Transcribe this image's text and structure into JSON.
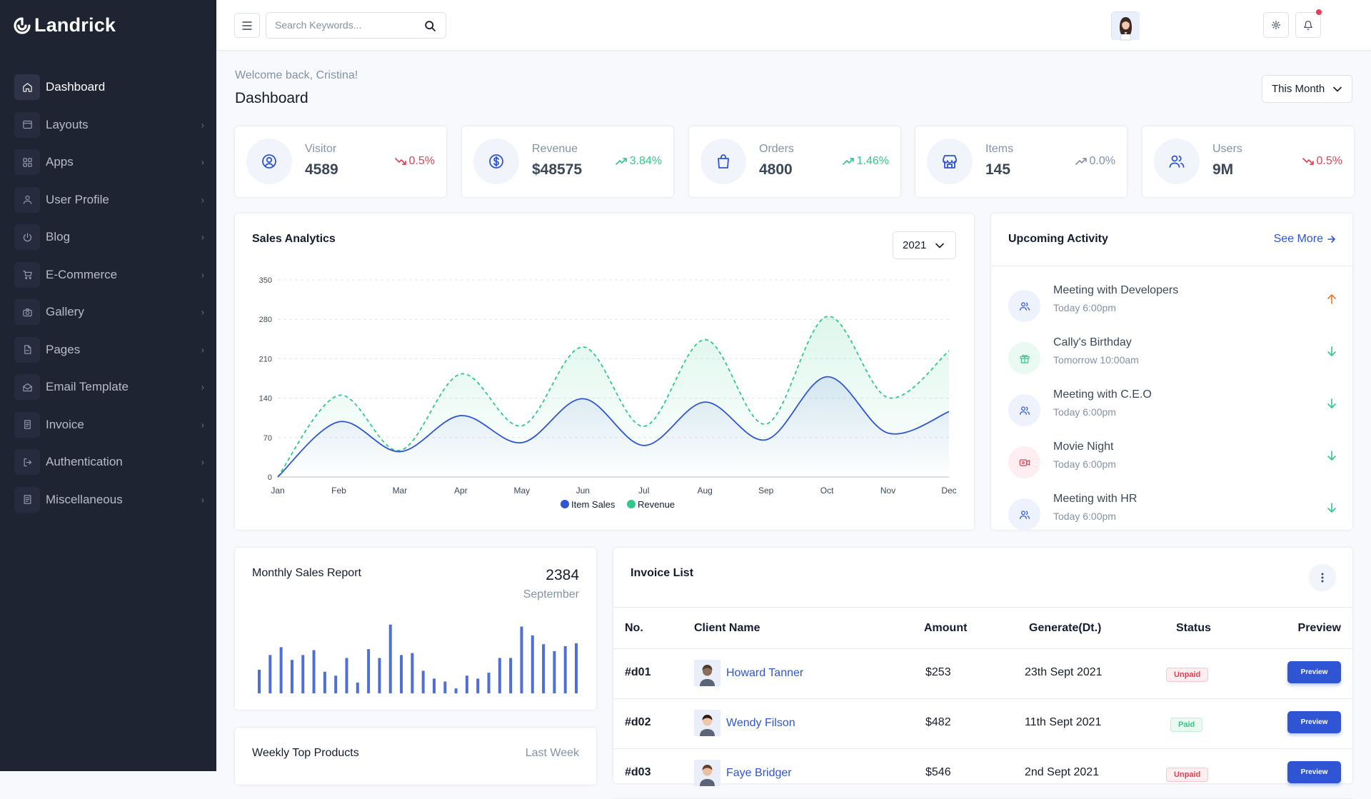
{
  "brand": {
    "name": "Landrick"
  },
  "sidebar": {
    "items": [
      {
        "label": "Dashboard",
        "icon": "home-icon",
        "active": true
      },
      {
        "label": "Layouts",
        "icon": "layout-icon"
      },
      {
        "label": "Apps",
        "icon": "apps-icon"
      },
      {
        "label": "User Profile",
        "icon": "user-icon"
      },
      {
        "label": "Blog",
        "icon": "blog-icon"
      },
      {
        "label": "E-Commerce",
        "icon": "cart-icon"
      },
      {
        "label": "Gallery",
        "icon": "camera-icon"
      },
      {
        "label": "Pages",
        "icon": "file-icon"
      },
      {
        "label": "Email Template",
        "icon": "mail-icon"
      },
      {
        "label": "Invoice",
        "icon": "invoice-icon"
      },
      {
        "label": "Authentication",
        "icon": "login-icon"
      },
      {
        "label": "Miscellaneous",
        "icon": "misc-icon"
      }
    ]
  },
  "topbar": {
    "search_placeholder": "Search Keywords..."
  },
  "header": {
    "welcome": "Welcome back, Cristina!",
    "title": "Dashboard",
    "period": "This Month"
  },
  "stats": [
    {
      "label": "Visitor",
      "value": "4589",
      "change": "0.5%",
      "trend": "down",
      "icon": "user-circle-icon"
    },
    {
      "label": "Revenue",
      "value": "$48575",
      "change": "3.84%",
      "trend": "up",
      "icon": "dollar-icon"
    },
    {
      "label": "Orders",
      "value": "4800",
      "change": "1.46%",
      "trend": "up",
      "icon": "shopping-bag-icon"
    },
    {
      "label": "Items",
      "value": "145",
      "change": "0.0%",
      "trend": "flat",
      "icon": "store-icon"
    },
    {
      "label": "Users",
      "value": "9M",
      "change": "0.5%",
      "trend": "down",
      "icon": "users-icon"
    }
  ],
  "sales_analytics": {
    "title": "Sales Analytics",
    "year": "2021"
  },
  "chart_data": [
    {
      "type": "area",
      "title": "Sales Analytics",
      "categories": [
        "Jan",
        "Feb",
        "Mar",
        "Apr",
        "May",
        "Jun",
        "Jul",
        "Aug",
        "Sep",
        "Oct",
        "Nov",
        "Dec"
      ],
      "series": [
        {
          "name": "Item Sales",
          "values": [
            0,
            98,
            45,
            109,
            61,
            139,
            56,
            133,
            66,
            178,
            78,
            116
          ],
          "color": "#2f55d4"
        },
        {
          "name": "Revenue",
          "values": [
            0,
            145,
            47,
            183,
            91,
            231,
            90,
            244,
            94,
            285,
            141,
            224
          ],
          "color": "#2eca8b"
        }
      ],
      "ylim": [
        0,
        350
      ],
      "yticks": [
        "0",
        "70",
        "140",
        "210",
        "280",
        "350"
      ],
      "grid": true,
      "legend": "bottom-center"
    },
    {
      "type": "bar",
      "title": "Monthly Sales Report",
      "values": [
        24,
        39,
        47,
        34,
        39,
        44,
        22,
        18,
        36,
        11,
        45,
        36,
        70,
        39,
        41,
        23,
        15,
        12,
        5,
        18,
        15,
        21,
        36,
        36,
        68,
        59,
        50,
        43,
        48,
        51
      ],
      "color": "#4f6fd6"
    }
  ],
  "upcoming": {
    "title": "Upcoming Activity",
    "see_more": "See More",
    "items": [
      {
        "title": "Meeting with Developers",
        "time": "Today 6:00pm",
        "icon": "users-icon",
        "color": "#2f55d4",
        "bg": "#eef2fc",
        "arrow": "up",
        "arrow_color": "#f17425"
      },
      {
        "title": "Cally's Birthday",
        "time": "Tomorrow 10:00am",
        "icon": "gift-icon",
        "color": "#2eca8b",
        "bg": "#eafaf3",
        "arrow": "down",
        "arrow_color": "#2eca8b"
      },
      {
        "title": "Meeting with C.E.O",
        "time": "Today 6:00pm",
        "icon": "users-icon",
        "color": "#2f55d4",
        "bg": "#eef2fc",
        "arrow": "down",
        "arrow_color": "#2eca8b"
      },
      {
        "title": "Movie Night",
        "time": "Today 6:00pm",
        "icon": "video-icon",
        "color": "#e43f52",
        "bg": "#fdeff1",
        "arrow": "down",
        "arrow_color": "#2eca8b"
      },
      {
        "title": "Meeting with HR",
        "time": "Today 6:00pm",
        "icon": "users-icon",
        "color": "#2f55d4",
        "bg": "#eef2fc",
        "arrow": "down",
        "arrow_color": "#2eca8b"
      }
    ]
  },
  "monthly": {
    "title": "Monthly Sales Report",
    "value": "2384",
    "month": "September"
  },
  "weekly": {
    "title": "Weekly Top Products",
    "period": "Last Week"
  },
  "invoice": {
    "title": "Invoice List",
    "columns": [
      "No.",
      "Client Name",
      "Amount",
      "Generate(Dt.)",
      "Status",
      "Preview"
    ],
    "rows": [
      {
        "no": "#d01",
        "client": "Howard Tanner",
        "amount": "$253",
        "date": "23th Sept 2021",
        "status": "Unpaid",
        "status_type": "unpaid",
        "preview": "Preview"
      },
      {
        "no": "#d02",
        "client": "Wendy Filson",
        "amount": "$482",
        "date": "11th Sept 2021",
        "status": "Paid",
        "status_type": "paid",
        "preview": "Preview"
      },
      {
        "no": "#d03",
        "client": "Faye Bridger",
        "amount": "$546",
        "date": "2nd Sept 2021",
        "status": "Unpaid",
        "status_type": "unpaid",
        "preview": "Preview"
      }
    ]
  },
  "colors": {
    "primary": "#2f55d4",
    "success": "#2eca8b",
    "danger": "#e43f52",
    "sidebar_bg": "#1f2433"
  }
}
